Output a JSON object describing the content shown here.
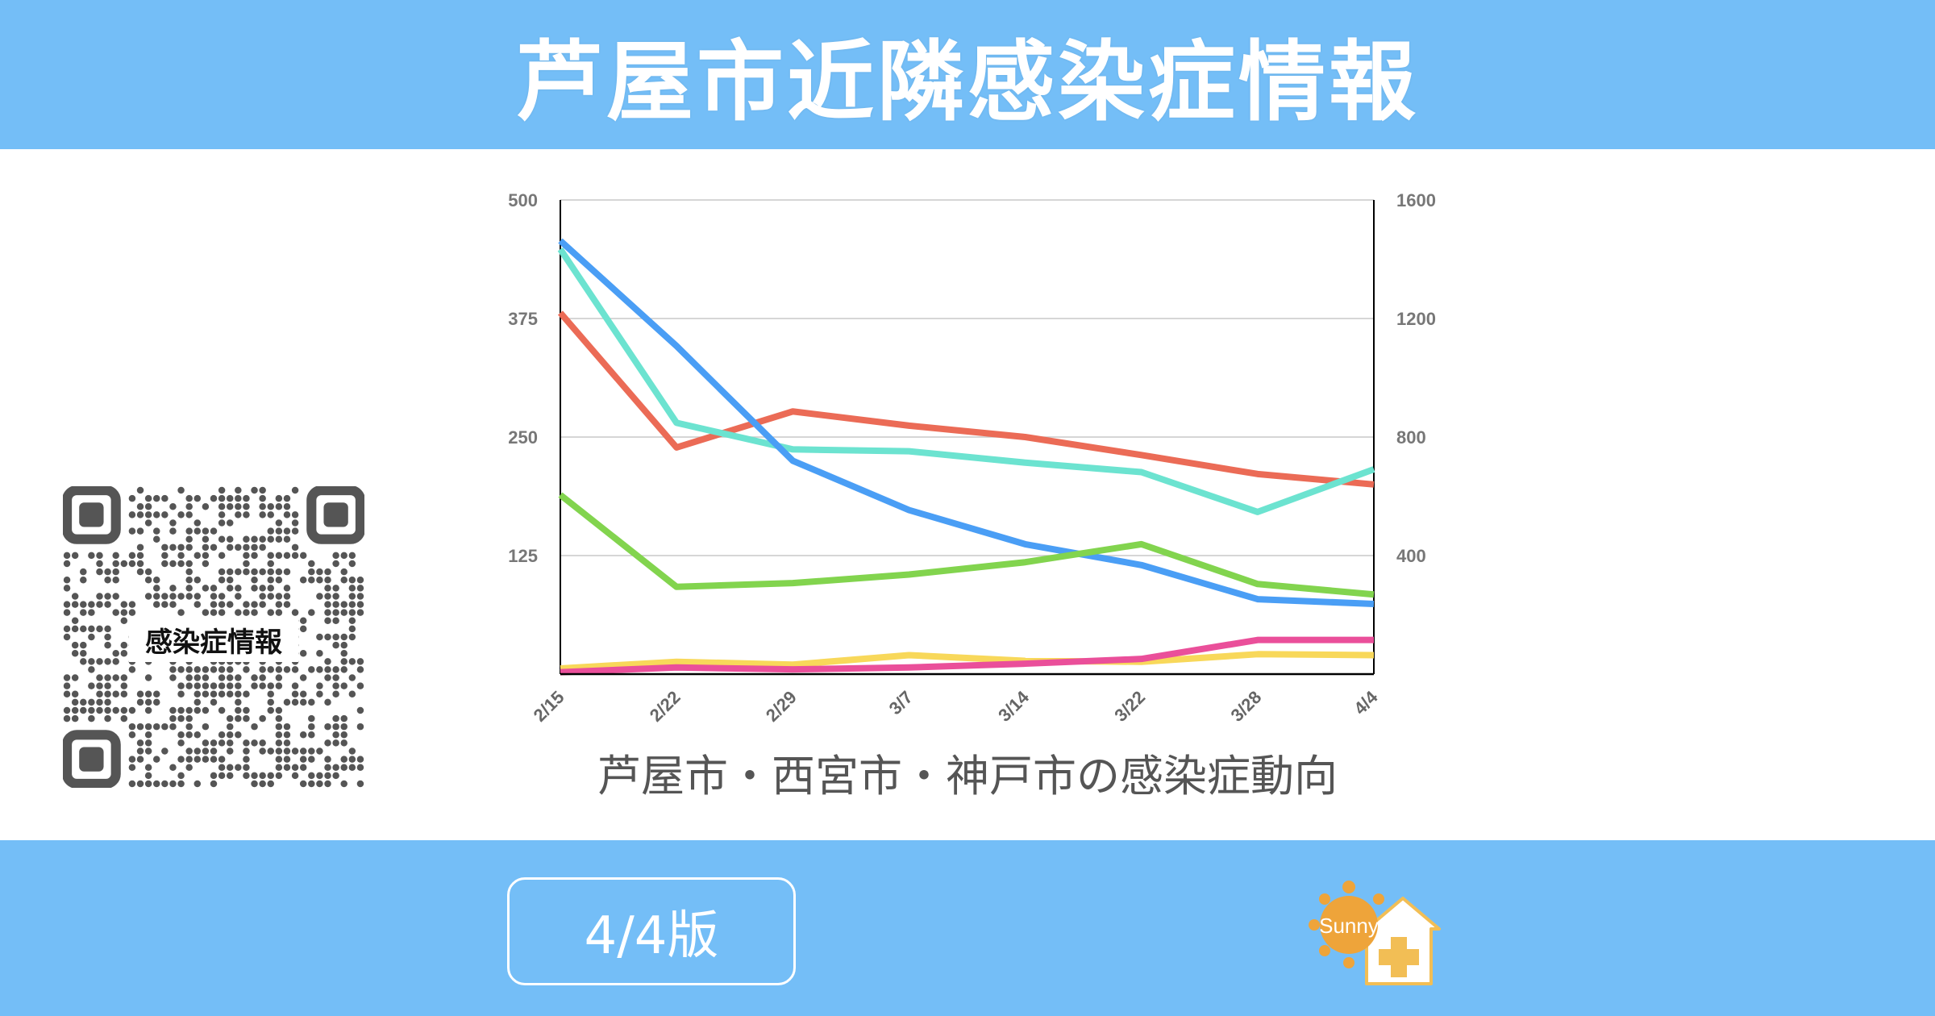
{
  "header": {
    "title": "芦屋市近隣感染症情報"
  },
  "caption": "芦屋市・西宮市・神戸市の感染症動向",
  "qr": {
    "label": "感染症情報"
  },
  "footer": {
    "edition": "4/4版",
    "logo_text": "Sunny"
  },
  "colors": {
    "header_bg": "#74bef7"
  },
  "chart_data": {
    "type": "line",
    "categories": [
      "2/15",
      "2/22",
      "2/29",
      "3/7",
      "3/14",
      "3/22",
      "3/28",
      "4/4"
    ],
    "left_axis": {
      "ticks": [
        "500",
        "375",
        "250",
        "125"
      ],
      "ylim": [
        0,
        500
      ]
    },
    "right_axis": {
      "ticks": [
        "1600",
        "1200",
        "800",
        "400"
      ],
      "ylim": [
        0,
        1600
      ]
    },
    "grid": true,
    "series": [
      {
        "color": "#eb6b56",
        "values": [
          381,
          239,
          277,
          262,
          250,
          231,
          211,
          200
        ]
      },
      {
        "color": "#6ce3d0",
        "values": [
          448,
          265,
          237,
          235,
          223,
          213,
          171,
          216
        ]
      },
      {
        "color": "#4a9ef5",
        "values": [
          457,
          346,
          225,
          173,
          137,
          115,
          79,
          74
        ]
      },
      {
        "color": "#82d44e",
        "values": [
          189,
          92,
          96,
          105,
          118,
          137,
          95,
          84
        ]
      },
      {
        "color": "#f8d85a",
        "values": [
          6,
          13,
          10,
          20,
          14,
          13,
          21,
          20
        ]
      },
      {
        "color": "#ea4f9a",
        "values": [
          2,
          7,
          5,
          7,
          11,
          16,
          36,
          36
        ]
      }
    ]
  }
}
